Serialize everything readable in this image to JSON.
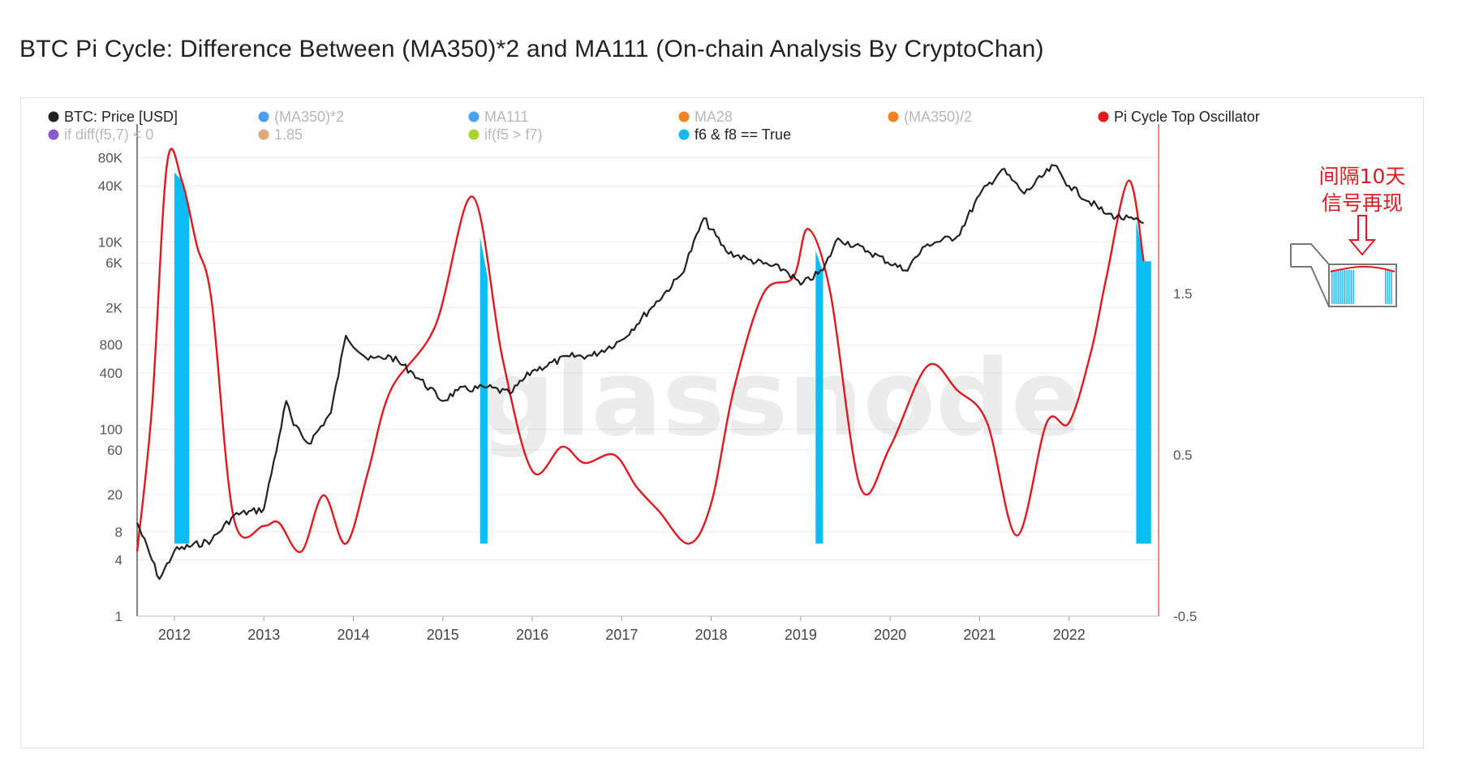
{
  "title": "BTC Pi Cycle: Difference Between (MA350)*2 and MA111 (On-chain Analysis By CryptoChan)",
  "watermark": "glassnode",
  "annotation": {
    "line1": "间隔10天",
    "line2": "信号再现"
  },
  "colors": {
    "price": "#222222",
    "oscillator": "#e3181e",
    "signal": "#0bbdf2",
    "grid": "#ececec",
    "annotation": "#e3181e"
  },
  "legend": [
    {
      "label": "BTC: Price [USD]",
      "color": "#222222",
      "active": true
    },
    {
      "label": "(MA350)*2",
      "color": "#4a9ff5",
      "active": false
    },
    {
      "label": "MA111",
      "color": "#4a9ff5",
      "active": false
    },
    {
      "label": "MA28",
      "color": "#f5821f",
      "active": false
    },
    {
      "label": "(MA350)/2",
      "color": "#f5821f",
      "active": false
    },
    {
      "label": "Pi Cycle Top Oscillator",
      "color": "#e3181e",
      "active": true
    },
    {
      "label": "if diff(f5,7) < 0",
      "color": "#8b5bd6",
      "active": false
    },
    {
      "label": "1.85",
      "color": "#e0a878",
      "active": false
    },
    {
      "label": "if(f5 > f7)",
      "color": "#a8d42b",
      "active": false
    },
    {
      "label": "f6 & f8 == True",
      "color": "#0bbdf2",
      "active": true
    }
  ],
  "chart_data": {
    "type": "line",
    "x_range": [
      "2011-08",
      "2022-12"
    ],
    "x_ticks": [
      "2012",
      "2013",
      "2014",
      "2015",
      "2016",
      "2017",
      "2018",
      "2019",
      "2020",
      "2021",
      "2022"
    ],
    "y_left": {
      "label": "",
      "scale": "log",
      "range": [
        1,
        150000
      ],
      "ticks": [
        "80K",
        "40K",
        "10K",
        "6K",
        "2K",
        "800",
        "400",
        "100",
        "60",
        "20",
        "8",
        "4",
        "1"
      ]
    },
    "y_right": {
      "label": "",
      "scale": "linear",
      "range": [
        -0.5,
        2.5
      ],
      "ticks": [
        "1.5",
        "0.5",
        "-0.5"
      ]
    },
    "series": [
      {
        "name": "BTC: Price [USD]",
        "axis": "left",
        "color": "#222222",
        "points": [
          [
            "2011-08",
            10
          ],
          [
            "2011-11",
            2.5
          ],
          [
            "2012-01",
            5
          ],
          [
            "2012-06",
            6.5
          ],
          [
            "2012-09",
            12
          ],
          [
            "2013-01",
            14
          ],
          [
            "2013-03",
            80
          ],
          [
            "2013-04",
            200
          ],
          [
            "2013-05",
            110
          ],
          [
            "2013-07",
            70
          ],
          [
            "2013-10",
            150
          ],
          [
            "2013-12",
            1000
          ],
          [
            "2014-03",
            550
          ],
          [
            "2014-06",
            600
          ],
          [
            "2014-09",
            400
          ],
          [
            "2015-01",
            200
          ],
          [
            "2015-03",
            260
          ],
          [
            "2015-07",
            280
          ],
          [
            "2015-10",
            240
          ],
          [
            "2016-01",
            420
          ],
          [
            "2016-06",
            600
          ],
          [
            "2016-09",
            610
          ],
          [
            "2017-01",
            900
          ],
          [
            "2017-05",
            2000
          ],
          [
            "2017-09",
            4500
          ],
          [
            "2017-12",
            18000
          ],
          [
            "2018-03",
            8000
          ],
          [
            "2018-06",
            6500
          ],
          [
            "2018-11",
            5000
          ],
          [
            "2019-01",
            3500
          ],
          [
            "2019-04",
            5000
          ],
          [
            "2019-06",
            11000
          ],
          [
            "2019-10",
            8000
          ],
          [
            "2020-03",
            5000
          ],
          [
            "2020-06",
            9500
          ],
          [
            "2020-10",
            11500
          ],
          [
            "2021-01",
            32000
          ],
          [
            "2021-04",
            60000
          ],
          [
            "2021-07",
            33000
          ],
          [
            "2021-11",
            66000
          ],
          [
            "2022-01",
            40000
          ],
          [
            "2022-06",
            20000
          ],
          [
            "2022-11",
            16000
          ]
        ]
      },
      {
        "name": "Pi Cycle Top Oscillator",
        "axis": "right",
        "color": "#e3181e",
        "points": [
          [
            "2011-08",
            -0.1
          ],
          [
            "2011-10",
            0.8
          ],
          [
            "2011-12",
            2.3
          ],
          [
            "2012-02",
            2.2
          ],
          [
            "2012-04",
            1.8
          ],
          [
            "2012-06",
            1.45
          ],
          [
            "2012-09",
            0.1
          ],
          [
            "2013-01",
            0.06
          ],
          [
            "2013-03",
            0.08
          ],
          [
            "2013-06",
            -0.1
          ],
          [
            "2013-09",
            0.25
          ],
          [
            "2013-12",
            -0.05
          ],
          [
            "2014-03",
            0.4
          ],
          [
            "2014-06",
            0.9
          ],
          [
            "2014-12",
            1.3
          ],
          [
            "2015-05",
            2.1
          ],
          [
            "2015-09",
            1.1
          ],
          [
            "2016-01",
            0.4
          ],
          [
            "2016-05",
            0.55
          ],
          [
            "2016-08",
            0.45
          ],
          [
            "2016-12",
            0.5
          ],
          [
            "2017-03",
            0.3
          ],
          [
            "2017-06",
            0.15
          ],
          [
            "2017-10",
            -0.05
          ],
          [
            "2018-01",
            0.2
          ],
          [
            "2018-04",
            0.9
          ],
          [
            "2018-08",
            1.5
          ],
          [
            "2018-12",
            1.6
          ],
          [
            "2019-02",
            1.9
          ],
          [
            "2019-05",
            1.5
          ],
          [
            "2019-09",
            0.3
          ],
          [
            "2020-01",
            0.55
          ],
          [
            "2020-06",
            1.05
          ],
          [
            "2020-10",
            0.9
          ],
          [
            "2021-02",
            0.7
          ],
          [
            "2021-06",
            0.0
          ],
          [
            "2021-10",
            0.7
          ],
          [
            "2022-01",
            0.7
          ],
          [
            "2022-04",
            1.15
          ],
          [
            "2022-06",
            1.6
          ],
          [
            "2022-09",
            2.2
          ],
          [
            "2022-11",
            1.7
          ]
        ]
      },
      {
        "name": "f6 & f8 == True",
        "axis": "right",
        "color": "#0bbdf2",
        "type": "bar",
        "intervals": [
          [
            "2012-01",
            "2012-03"
          ],
          [
            "2015-06",
            "2015-07"
          ],
          [
            "2019-03",
            "2019-04"
          ],
          [
            "2022-10",
            "2022-12"
          ]
        ]
      }
    ]
  }
}
